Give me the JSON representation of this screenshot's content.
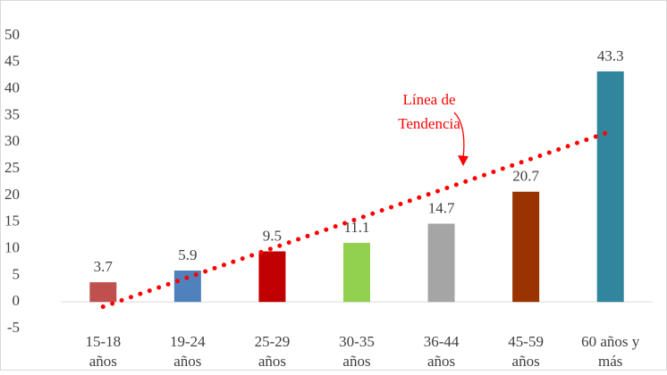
{
  "chart_data": {
    "type": "bar",
    "categories": [
      [
        "15-18",
        "años"
      ],
      [
        "19-24",
        "años"
      ],
      [
        "25-29",
        "años"
      ],
      [
        "30-35",
        "años"
      ],
      [
        "36-44",
        "años"
      ],
      [
        "45-59",
        "años"
      ],
      [
        "60 años y",
        "más"
      ]
    ],
    "values": [
      3.7,
      5.9,
      9.5,
      11.1,
      14.7,
      20.7,
      43.3
    ],
    "colors": [
      "#c0504d",
      "#4f81bd",
      "#c00000",
      "#92d050",
      "#a5a5a5",
      "#993300",
      "#31859c"
    ],
    "ylim": [
      -5,
      50
    ],
    "yticks": [
      -5,
      0,
      5,
      10,
      15,
      20,
      25,
      30,
      35,
      40,
      45,
      50
    ],
    "grid": false,
    "trendline": {
      "kind": "linear",
      "color": "#ff0000",
      "label": [
        "Línea de",
        "Tendencia"
      ]
    }
  }
}
